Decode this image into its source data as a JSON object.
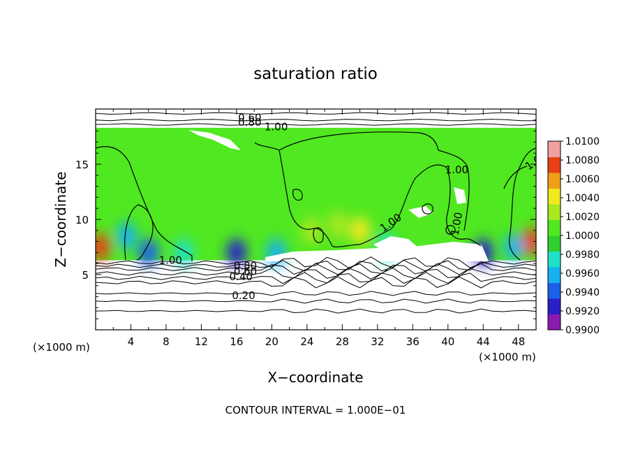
{
  "chart_data": {
    "type": "heatmap",
    "title": "saturation ratio",
    "xlabel": "X−coordinate",
    "ylabel": "Z−coordinate",
    "x_unit_label": "(×1000 m)",
    "xlim": [
      0,
      50
    ],
    "ylim": [
      0,
      20
    ],
    "x_ticks": [
      4,
      8,
      12,
      16,
      20,
      24,
      28,
      32,
      36,
      40,
      44,
      48
    ],
    "y_ticks": [
      5,
      10,
      15
    ],
    "footer": "CONTOUR INTERVAL = 1.000E−01",
    "colorbar": {
      "min": 0.99,
      "max": 1.01,
      "ticks": [
        "1.0100",
        "1.0080",
        "1.0060",
        "1.0040",
        "1.0020",
        "1.0000",
        "0.9980",
        "0.9960",
        "0.9940",
        "0.9920",
        "0.9900"
      ],
      "colors": [
        "#8a1ab0",
        "#2a20c8",
        "#1a60e8",
        "#18b0f0",
        "#20e0c8",
        "#30d030",
        "#50e820",
        "#a8e820",
        "#f0e820",
        "#f0a018",
        "#e84018",
        "#f0a0a0"
      ]
    },
    "field": {
      "upper_region_z": [
        6.3,
        18.3
      ],
      "background_value": 1.0,
      "features": [
        {
          "x": 0.5,
          "z": 7.5,
          "value": 1.008
        },
        {
          "x": 49.5,
          "z": 8.0,
          "value": 1.007
        },
        {
          "x": 3.5,
          "z": 8.5,
          "value": 0.9965
        },
        {
          "x": 6.0,
          "z": 7.0,
          "value": 0.9945
        },
        {
          "x": 10.0,
          "z": 7.0,
          "value": 0.997
        },
        {
          "x": 16.0,
          "z": 7.0,
          "value": 0.993
        },
        {
          "x": 20.5,
          "z": 7.0,
          "value": 0.9955
        },
        {
          "x": 33.0,
          "z": 7.5,
          "value": 0.9975
        },
        {
          "x": 44.0,
          "z": 7.0,
          "value": 0.993
        },
        {
          "x": 47.5,
          "z": 7.5,
          "value": 0.996
        },
        {
          "x": 24.5,
          "z": 9.0,
          "value": 1.003
        },
        {
          "x": 27.5,
          "z": 9.5,
          "value": 1.003
        },
        {
          "x": 30.0,
          "z": 9.0,
          "value": 1.004
        }
      ]
    },
    "contour_labels": [
      "0.60",
      "0.80",
      "1.00",
      "1.00",
      "1.00",
      "1.00",
      "1.00",
      "1.00",
      "0.80",
      "0.60",
      "0.40",
      "0.20"
    ]
  }
}
